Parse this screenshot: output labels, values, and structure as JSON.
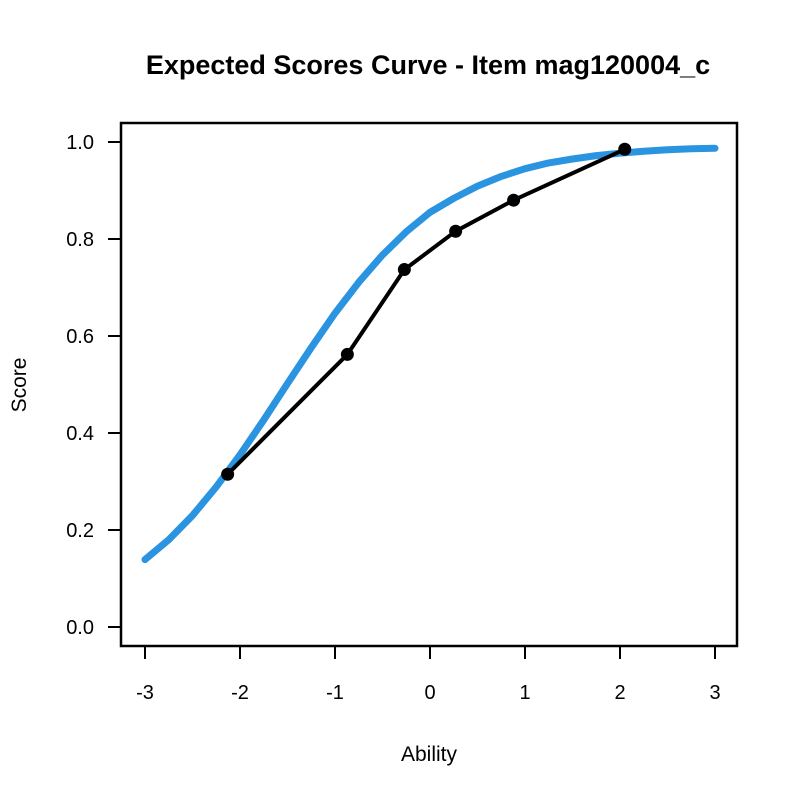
{
  "chart_data": {
    "type": "line",
    "title": "Expected Scores Curve - Item  mag120004_c",
    "xlabel": "Ability",
    "ylabel": "Score",
    "xlim": [
      -3,
      3
    ],
    "ylim": [
      0,
      1
    ],
    "xticks": [
      "-3",
      "-2",
      "-1",
      "0",
      "1",
      "2",
      "3"
    ],
    "yticks": [
      "0.0",
      "0.2",
      "0.4",
      "0.6",
      "0.8",
      "1.0"
    ],
    "grid": false,
    "legend": "none",
    "series": [
      {
        "color": "#2b94e0",
        "x": [
          -3.0,
          -2.75,
          -2.5,
          -2.25,
          -2.0,
          -1.75,
          -1.5,
          -1.25,
          -1.0,
          -0.75,
          -0.5,
          -0.25,
          0.0,
          0.25,
          0.5,
          0.75,
          1.0,
          1.25,
          1.5,
          1.75,
          2.0,
          2.25,
          2.5,
          2.75,
          3.0
        ],
        "y": [
          0.139,
          0.18,
          0.23,
          0.289,
          0.355,
          0.427,
          0.502,
          0.576,
          0.647,
          0.711,
          0.767,
          0.815,
          0.855,
          0.884,
          0.909,
          0.929,
          0.945,
          0.957,
          0.965,
          0.972,
          0.977,
          0.981,
          0.984,
          0.986,
          0.987
        ]
      },
      {
        "color": "#000000",
        "markers": true,
        "x": [
          -2.13,
          -0.87,
          -0.27,
          0.27,
          0.88,
          2.05
        ],
        "y": [
          0.315,
          0.562,
          0.737,
          0.816,
          0.88,
          0.985
        ]
      }
    ]
  }
}
